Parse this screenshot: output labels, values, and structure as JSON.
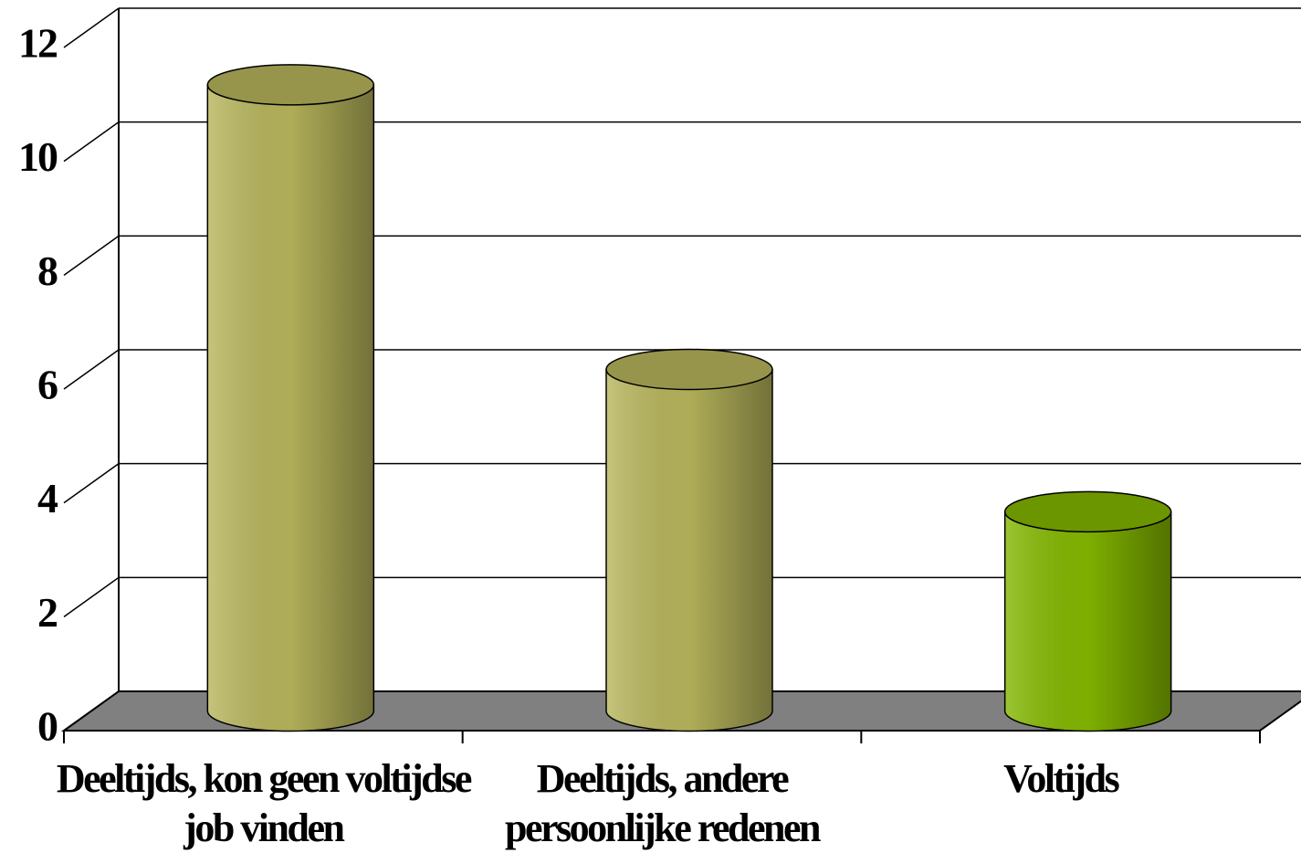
{
  "chart_data": {
    "type": "bar",
    "categories": [
      "Deeltijds, kon geen voltijdse job vinden",
      "Deeltijds, andere persoonlijke redenen",
      "Voltijds"
    ],
    "values": [
      11,
      6,
      3.5
    ],
    "colors": [
      "#b8b65c",
      "#b8b65c",
      "#84b800"
    ],
    "ylim": [
      0,
      12
    ],
    "yticks": [
      0,
      2,
      4,
      6,
      8,
      10,
      12
    ],
    "grid": true
  }
}
